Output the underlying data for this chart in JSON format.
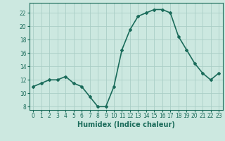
{
  "x": [
    0,
    1,
    2,
    3,
    4,
    5,
    6,
    7,
    8,
    9,
    10,
    11,
    12,
    13,
    14,
    15,
    16,
    17,
    18,
    19,
    20,
    21,
    22,
    23
  ],
  "y": [
    11,
    11.5,
    12,
    12,
    12.5,
    11.5,
    11,
    9.5,
    8,
    8,
    11,
    16.5,
    19.5,
    21.5,
    22,
    22.5,
    22.5,
    22,
    18.5,
    16.5,
    14.5,
    13,
    12,
    13
  ],
  "line_color": "#1a6b5a",
  "marker": "D",
  "marker_size": 2,
  "bg_color": "#cce8e0",
  "grid_color": "#aacec6",
  "xlabel": "Humidex (Indice chaleur)",
  "ylim": [
    7.5,
    23.5
  ],
  "xlim": [
    -0.5,
    23.5
  ],
  "yticks": [
    8,
    10,
    12,
    14,
    16,
    18,
    20,
    22
  ],
  "xticks": [
    0,
    1,
    2,
    3,
    4,
    5,
    6,
    7,
    8,
    9,
    10,
    11,
    12,
    13,
    14,
    15,
    16,
    17,
    18,
    19,
    20,
    21,
    22,
    23
  ],
  "tick_label_size": 5.5,
  "xlabel_size": 7,
  "line_width": 1.2
}
